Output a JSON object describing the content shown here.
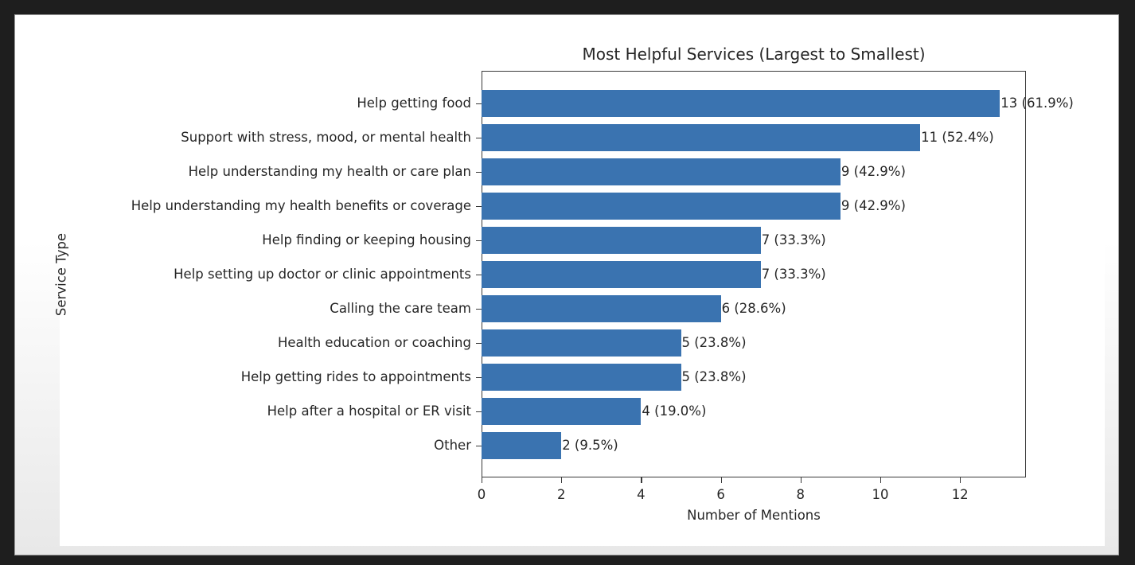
{
  "colors": {
    "bar": "#3a73b0",
    "frame": "#1e1e1e",
    "text": "#262626"
  },
  "chart_data": {
    "type": "bar",
    "orientation": "horizontal",
    "title": "Most Helpful Services (Largest to Smallest)",
    "xlabel": "Number of Mentions",
    "ylabel": "Service Type",
    "xlim": [
      0,
      13.65
    ],
    "xticks": [
      0,
      2,
      4,
      6,
      8,
      10,
      12
    ],
    "grid": false,
    "legend": null,
    "categories": [
      "Help getting food",
      "Support with stress, mood, or mental health",
      "Help understanding my health or care plan",
      "Help understanding my health benefits or coverage",
      "Help finding or keeping housing",
      "Help setting up doctor or clinic appointments",
      "Calling the care team",
      "Health education or coaching",
      "Help getting rides to appointments",
      "Help after a hospital or ER visit",
      "Other"
    ],
    "values": [
      13,
      11,
      9,
      9,
      7,
      7,
      6,
      5,
      5,
      4,
      2
    ],
    "percentages": [
      61.9,
      52.4,
      42.9,
      42.9,
      33.3,
      33.3,
      28.6,
      23.8,
      23.8,
      19.0,
      9.5
    ],
    "data_labels": [
      "13 (61.9%)",
      "11 (52.4%)",
      "9 (42.9%)",
      "9 (42.9%)",
      "7 (33.3%)",
      "7 (33.3%)",
      "6 (28.6%)",
      "5 (23.8%)",
      "5 (23.8%)",
      "4 (19.0%)",
      "2 (9.5%)"
    ]
  }
}
